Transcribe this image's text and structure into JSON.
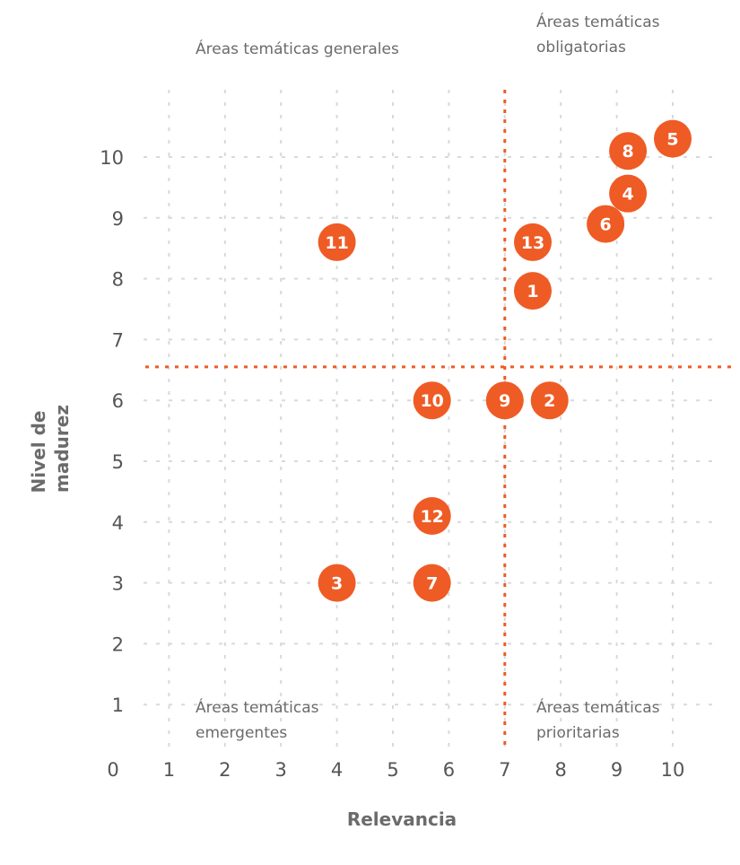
{
  "chart_data": {
    "type": "scatter",
    "xlabel": "Relevancia",
    "ylabel_lines": [
      "Nivel de",
      "madurez"
    ],
    "x_ticks": [
      "0",
      "1",
      "2",
      "3",
      "4",
      "5",
      "6",
      "7",
      "8",
      "9",
      "10"
    ],
    "y_ticks": [
      "1",
      "2",
      "3",
      "4",
      "5",
      "6",
      "7",
      "8",
      "9",
      "10"
    ],
    "grid": true,
    "threshold_x": 7,
    "threshold_y": 6.55,
    "accent_color": "#EF5B25",
    "grid_color": "#D9D9D9",
    "quadrants": {
      "top_left": [
        "Áreas temáticas generales"
      ],
      "top_right": [
        "Áreas temáticas",
        "obligatorias"
      ],
      "bottom_left": [
        "Áreas temáticas",
        "emergentes"
      ],
      "bottom_right": [
        "Áreas temáticas",
        "prioritarias"
      ]
    },
    "points": [
      {
        "label": "1",
        "x": 7.5,
        "y": 7.8
      },
      {
        "label": "2",
        "x": 7.8,
        "y": 6.0
      },
      {
        "label": "3",
        "x": 4.0,
        "y": 3.0
      },
      {
        "label": "4",
        "x": 9.2,
        "y": 9.4
      },
      {
        "label": "5",
        "x": 10.0,
        "y": 10.3
      },
      {
        "label": "6",
        "x": 8.8,
        "y": 8.9
      },
      {
        "label": "7",
        "x": 5.7,
        "y": 3.0
      },
      {
        "label": "8",
        "x": 9.2,
        "y": 10.1
      },
      {
        "label": "9",
        "x": 7.0,
        "y": 6.0
      },
      {
        "label": "10",
        "x": 5.7,
        "y": 6.0
      },
      {
        "label": "11",
        "x": 4.0,
        "y": 8.6
      },
      {
        "label": "12",
        "x": 5.7,
        "y": 4.1
      },
      {
        "label": "13",
        "x": 7.5,
        "y": 8.6
      }
    ]
  }
}
